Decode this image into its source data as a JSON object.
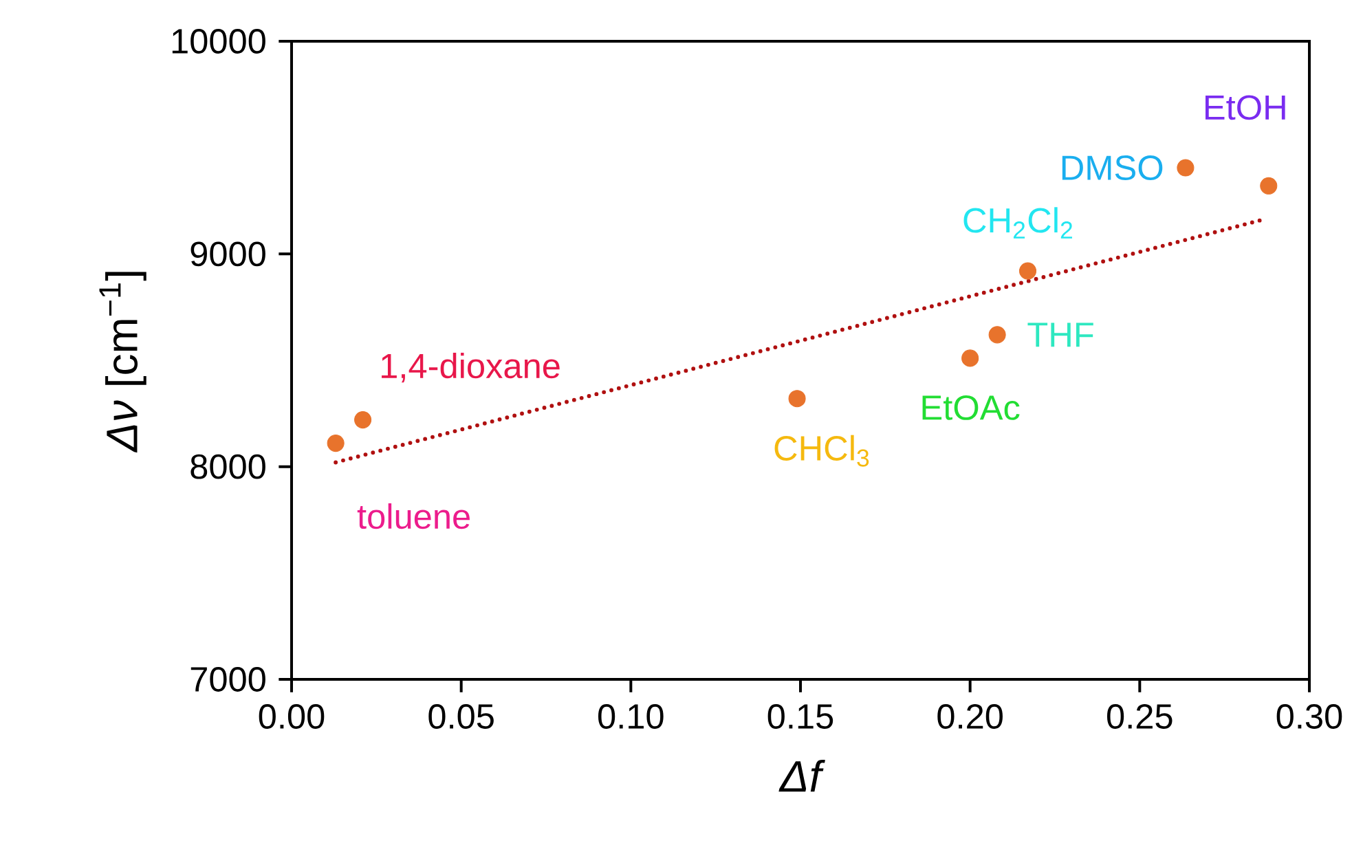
{
  "chart_data": {
    "type": "scatter",
    "xlabel": "Δf",
    "ylabel": "*Δν* [cm$^{−1}$]",
    "x": [
      0.013,
      0.021,
      0.149,
      0.2,
      0.208,
      0.217,
      0.2635,
      0.288
    ],
    "series": [
      {
        "color": "#e8732c",
        "marker": "circle",
        "values": [
          8110,
          8220,
          8320,
          8510,
          8620,
          8920,
          9405,
          9320
        ]
      },
      {
        "type": "line",
        "color": "#b01010",
        "line_style": "dotted",
        "marker": "none",
        "x": [
          0.013,
          0.286
        ],
        "values": [
          8020,
          9160
        ]
      }
    ],
    "annotations": [
      {
        "text": "toluene",
        "x": 0.013,
        "y": 8110
      },
      {
        "text": "1,4-dioxane",
        "x": 0.021,
        "y": 8220
      },
      {
        "text": "CHCl$_{3}$",
        "x": 0.149,
        "y": 8320
      },
      {
        "text": "EtOAc",
        "x": 0.2,
        "y": 8510
      },
      {
        "text": "THF",
        "x": 0.208,
        "y": 8620
      },
      {
        "text": "CH$_{2}$Cl$_{2}$",
        "x": 0.217,
        "y": 8920
      },
      {
        "text": "DMSO",
        "x": 0.2635,
        "y": 9405
      },
      {
        "text": "EtOH",
        "x": 0.288,
        "y": 9320
      }
    ],
    "xlim": [
      0,
      0.3
    ],
    "ylim": [
      7000,
      10000
    ],
    "xticks": [
      {
        "value": 0,
        "label": "0.00"
      },
      {
        "value": 0.05,
        "label": "0.05"
      },
      {
        "value": 0.1,
        "label": "0.10"
      },
      {
        "value": 0.15,
        "label": "0.15"
      },
      {
        "value": 0.2,
        "label": "0.20"
      },
      {
        "value": 0.25,
        "label": "0.25"
      },
      {
        "value": 0.3,
        "label": "0.30"
      }
    ],
    "yticks": [
      7000,
      8000,
      9000,
      10000
    ],
    "grid": false
  }
}
